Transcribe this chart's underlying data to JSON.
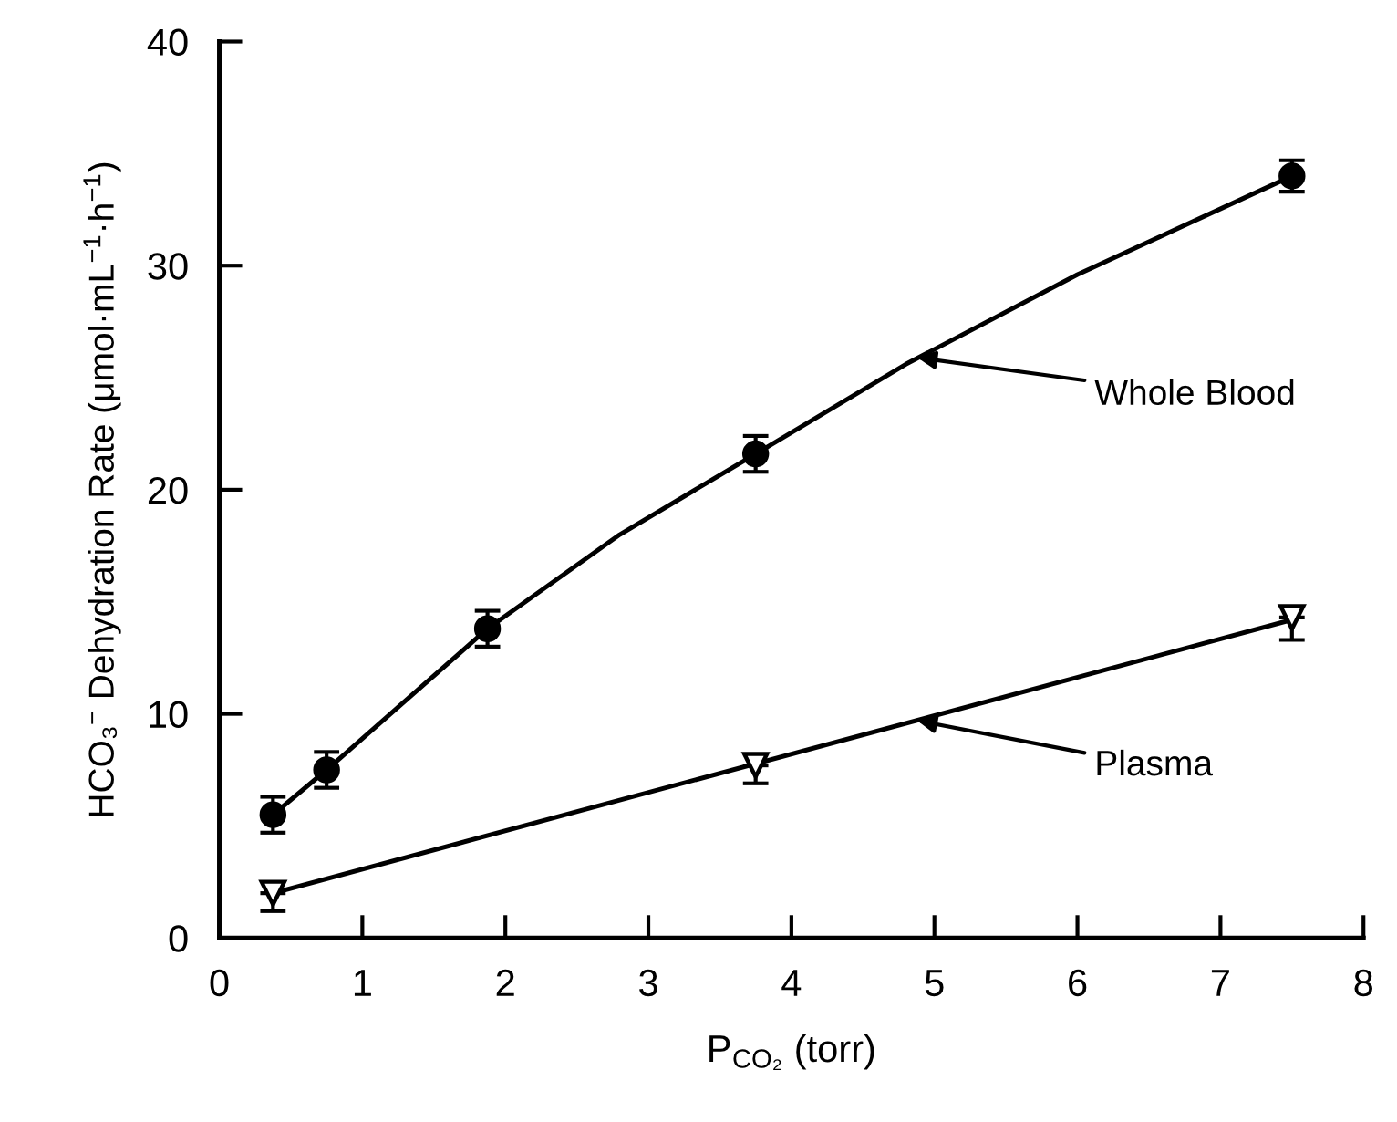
{
  "chart_data": {
    "type": "scatter",
    "xlabel": "P$_{CO₂}$ (torr)",
    "ylabel": "HCO₃$^{−}$ Dehydration Rate (μmol·mL$^{−1}$·h$^{−1}$)",
    "xlim": [
      0,
      8
    ],
    "ylim": [
      0,
      40
    ],
    "xticks": [
      0,
      1,
      2,
      3,
      4,
      5,
      6,
      7,
      8
    ],
    "yticks": [
      0,
      10,
      20,
      30,
      40
    ],
    "grid": false,
    "legend": false,
    "series": [
      {
        "color": "#000000",
        "marker": "circle",
        "x": [
          0.375,
          0.75,
          1.875,
          3.75,
          7.5
        ],
        "values": [
          5.5,
          7.5,
          13.8,
          21.6,
          34.0
        ],
        "errors": [
          0.8,
          0.8,
          0.8,
          0.8,
          0.7
        ]
      },
      {
        "color": "#000000",
        "marker": "triangle",
        "x": [
          0.375,
          3.75,
          7.5
        ],
        "values": [
          2.0,
          7.7,
          14.3
        ],
        "errors": [
          [
            1.2,
            2.0
          ],
          [
            6.9,
            7.7
          ],
          [
            13.3,
            14.3
          ]
        ]
      },
      {
        "type": "line",
        "color": "#000000",
        "line_style": "solid",
        "marker": "none",
        "x": [
          0.375,
          0.75,
          1.875,
          2.8,
          3.75,
          4.8,
          6.0,
          7.5
        ],
        "values": [
          5.5,
          7.5,
          13.8,
          18.0,
          21.6,
          25.6,
          29.6,
          34.0
        ]
      },
      {
        "type": "line",
        "color": "#000000",
        "line_style": "solid",
        "marker": "none",
        "x": [
          0.375,
          7.5
        ],
        "values": [
          2.0,
          14.2
        ]
      }
    ],
    "annotations": [
      {
        "text": "Whole Blood",
        "x": 4.88,
        "y": 25.9
      },
      {
        "text": "Plasma",
        "x": 4.88,
        "y": 9.7
      }
    ]
  }
}
